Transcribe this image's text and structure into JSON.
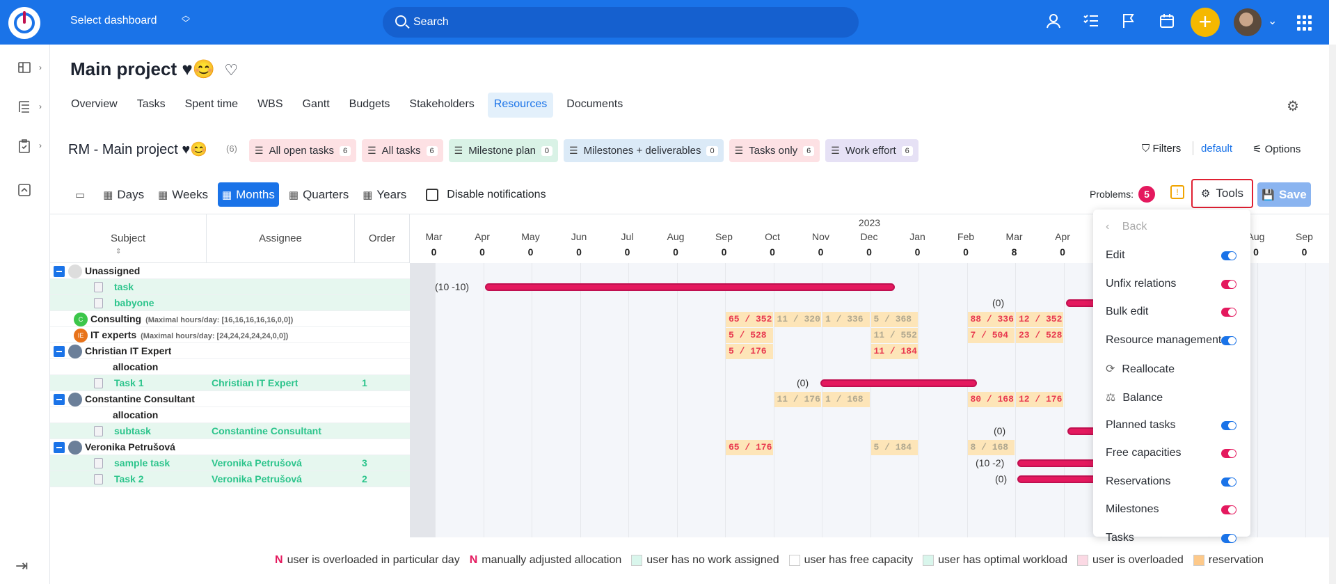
{
  "topbar": {
    "select_dashboard": "Select dashboard",
    "search_placeholder": "Search",
    "icons": [
      "user-icon",
      "checklist-icon",
      "flag-icon",
      "calendar-icon",
      "plus-icon",
      "avatar",
      "chevron-down-icon",
      "apps-grid-icon"
    ]
  },
  "project": {
    "title": "Main project ♥😊",
    "tabs": [
      "Overview",
      "Tasks",
      "Spent time",
      "WBS",
      "Gantt",
      "Budgets",
      "Stakeholders",
      "Resources",
      "Documents"
    ],
    "active_tab": "Resources"
  },
  "query": {
    "title": "RM - Main project ♥😊",
    "count": "(6)",
    "chips": [
      {
        "label": "All open tasks",
        "count": "6",
        "color": "#fde1e4"
      },
      {
        "label": "All tasks",
        "count": "6",
        "color": "#fde1e4"
      },
      {
        "label": "Milestone plan",
        "count": "0",
        "color": "#d9f2e6"
      },
      {
        "label": "Milestones + deliverables",
        "count": "0",
        "color": "#dbeaf7"
      },
      {
        "label": "Tasks only",
        "count": "6",
        "color": "#fde1e4"
      },
      {
        "label": "Work effort",
        "count": "6",
        "color": "#e6e1f5"
      }
    ],
    "filters": "Filters",
    "filter_default": "default",
    "options": "Options"
  },
  "zoom": {
    "buttons": [
      "Days",
      "Weeks",
      "Months",
      "Quarters",
      "Years"
    ],
    "active": "Months",
    "disable_notifications": "Disable notifications",
    "problems_label": "Problems:",
    "problems_count": "5",
    "tools": "Tools",
    "save": "Save"
  },
  "grid": {
    "headers": {
      "subject": "Subject",
      "assignee": "Assignee",
      "order": "Order"
    },
    "year": "2023",
    "months": [
      {
        "m": "Mar",
        "v": "0"
      },
      {
        "m": "Apr",
        "v": "0"
      },
      {
        "m": "May",
        "v": "0"
      },
      {
        "m": "Jun",
        "v": "0"
      },
      {
        "m": "Jul",
        "v": "0"
      },
      {
        "m": "Aug",
        "v": "0"
      },
      {
        "m": "Sep",
        "v": "0"
      },
      {
        "m": "Oct",
        "v": "0"
      },
      {
        "m": "Nov",
        "v": "0"
      },
      {
        "m": "Dec",
        "v": "0"
      },
      {
        "m": "Jan",
        "v": "0"
      },
      {
        "m": "Feb",
        "v": "0"
      },
      {
        "m": "Mar",
        "v": "8"
      },
      {
        "m": "Apr",
        "v": "0"
      },
      {
        "m": "May",
        "v": ""
      },
      {
        "m": "Jun",
        "v": ""
      },
      {
        "m": "Jul",
        "v": ""
      },
      {
        "m": "Aug",
        "v": "0"
      },
      {
        "m": "Sep",
        "v": "0"
      }
    ],
    "rows": [
      {
        "type": "group",
        "subject": "Unassigned"
      },
      {
        "type": "leaf",
        "subject": "task",
        "assignee": "",
        "order": ""
      },
      {
        "type": "leaf",
        "subject": "babyone",
        "assignee": "",
        "order": ""
      },
      {
        "type": "group-nominus",
        "subject": "Consulting",
        "maxhrs": "(Maximal hours/day: [16,16,16,16,16,0,0])",
        "badge": "C",
        "badge_color": "#3cc64a"
      },
      {
        "type": "group-nominus",
        "subject": "IT experts",
        "maxhrs": "(Maximal hours/day: [24,24,24,24,24,0,0])",
        "badge": "IE",
        "badge_color": "#e8731a"
      },
      {
        "type": "group",
        "subject": "Christian IT Expert"
      },
      {
        "type": "alloc",
        "subject": "allocation"
      },
      {
        "type": "leaf",
        "subject": "Task 1",
        "assignee": "Christian IT Expert",
        "order": "1"
      },
      {
        "type": "group",
        "subject": "Constantine Consultant"
      },
      {
        "type": "alloc",
        "subject": "allocation"
      },
      {
        "type": "leaf",
        "subject": "subtask",
        "assignee": "Constantine Consultant",
        "order": ""
      },
      {
        "type": "group",
        "subject": "Veronika Petrušová"
      },
      {
        "type": "leaf",
        "subject": "sample task",
        "assignee": "Veronika Petrušová",
        "order": "3"
      },
      {
        "type": "leaf",
        "subject": "Task 2",
        "assignee": "Veronika Petrušová",
        "order": "2"
      }
    ],
    "allocations": [
      {
        "row": 3,
        "col": 7,
        "t": "65 / 352",
        "k": "r"
      },
      {
        "row": 3,
        "col": 8,
        "t": "11 / 320",
        "k": "g"
      },
      {
        "row": 3,
        "col": 9,
        "t": "1 / 336",
        "k": "g"
      },
      {
        "row": 3,
        "col": 10,
        "t": "5 / 368",
        "k": "g"
      },
      {
        "row": 3,
        "col": 12,
        "t": "88 / 336",
        "k": "r"
      },
      {
        "row": 3,
        "col": 13,
        "t": "12 / 352",
        "k": "r"
      },
      {
        "row": 4,
        "col": 7,
        "t": "5 / 528",
        "k": "r"
      },
      {
        "row": 4,
        "col": 10,
        "t": "11 / 552",
        "k": "g"
      },
      {
        "row": 4,
        "col": 12,
        "t": "7 / 504",
        "k": "r"
      },
      {
        "row": 4,
        "col": 13,
        "t": "23 / 528",
        "k": "r"
      },
      {
        "row": 5,
        "col": 7,
        "t": "5 / 176",
        "k": "r"
      },
      {
        "row": 5,
        "col": 10,
        "t": "11 / 184",
        "k": "r"
      },
      {
        "row": 8,
        "col": 8,
        "t": "11 / 176",
        "k": "g"
      },
      {
        "row": 8,
        "col": 9,
        "t": "1 / 168",
        "k": "g"
      },
      {
        "row": 8,
        "col": 12,
        "t": "80 / 168",
        "k": "r"
      },
      {
        "row": 8,
        "col": 13,
        "t": "12 / 176",
        "k": "r"
      },
      {
        "row": 11,
        "col": 7,
        "t": "65 / 176",
        "k": "r"
      },
      {
        "row": 11,
        "col": 10,
        "t": "5 / 184",
        "k": "g"
      },
      {
        "row": 11,
        "col": 12,
        "t": "8 / 168",
        "k": "g"
      }
    ],
    "bar_labels": [
      {
        "row": 1,
        "t": "(10 -10)"
      },
      {
        "row": 2,
        "t": "(0)"
      },
      {
        "row": 7,
        "t": "(0)"
      },
      {
        "row": 10,
        "t": "(0)"
      },
      {
        "row": 12,
        "t": "(10 -2)"
      },
      {
        "row": 13,
        "t": "(0)"
      }
    ]
  },
  "tools_menu": {
    "back": "Back",
    "items": [
      {
        "label": "Edit",
        "toggle": "on"
      },
      {
        "label": "Unfix relations",
        "toggle": "off"
      },
      {
        "label": "Bulk edit",
        "toggle": "off"
      },
      {
        "label": "Resource management",
        "toggle": "on"
      },
      {
        "label": "Reallocate",
        "toggle": "",
        "icon": "refresh-icon"
      },
      {
        "label": "Balance",
        "toggle": "",
        "icon": "balance-icon"
      },
      {
        "label": "Planned tasks",
        "toggle": "on"
      },
      {
        "label": "Free capacities",
        "toggle": "off"
      },
      {
        "label": "Reservations",
        "toggle": "on"
      },
      {
        "label": "Milestones",
        "toggle": "off"
      },
      {
        "label": "Tasks",
        "toggle": "on"
      }
    ]
  },
  "legend": [
    {
      "n": "N",
      "label": "user is overloaded in particular day",
      "sw": ""
    },
    {
      "n": "N",
      "label": "manually adjusted allocation",
      "sw": ""
    },
    {
      "n": "",
      "label": "user has no work assigned",
      "sw": "#d9f6ec"
    },
    {
      "n": "",
      "label": "user has free capacity",
      "sw": "#ffffff"
    },
    {
      "n": "",
      "label": "user has optimal workload",
      "sw": "#d9f6ec"
    },
    {
      "n": "",
      "label": "user is overloaded",
      "sw": "#fbd9e4"
    },
    {
      "n": "",
      "label": "reservation",
      "sw": "#fdc98a"
    }
  ]
}
